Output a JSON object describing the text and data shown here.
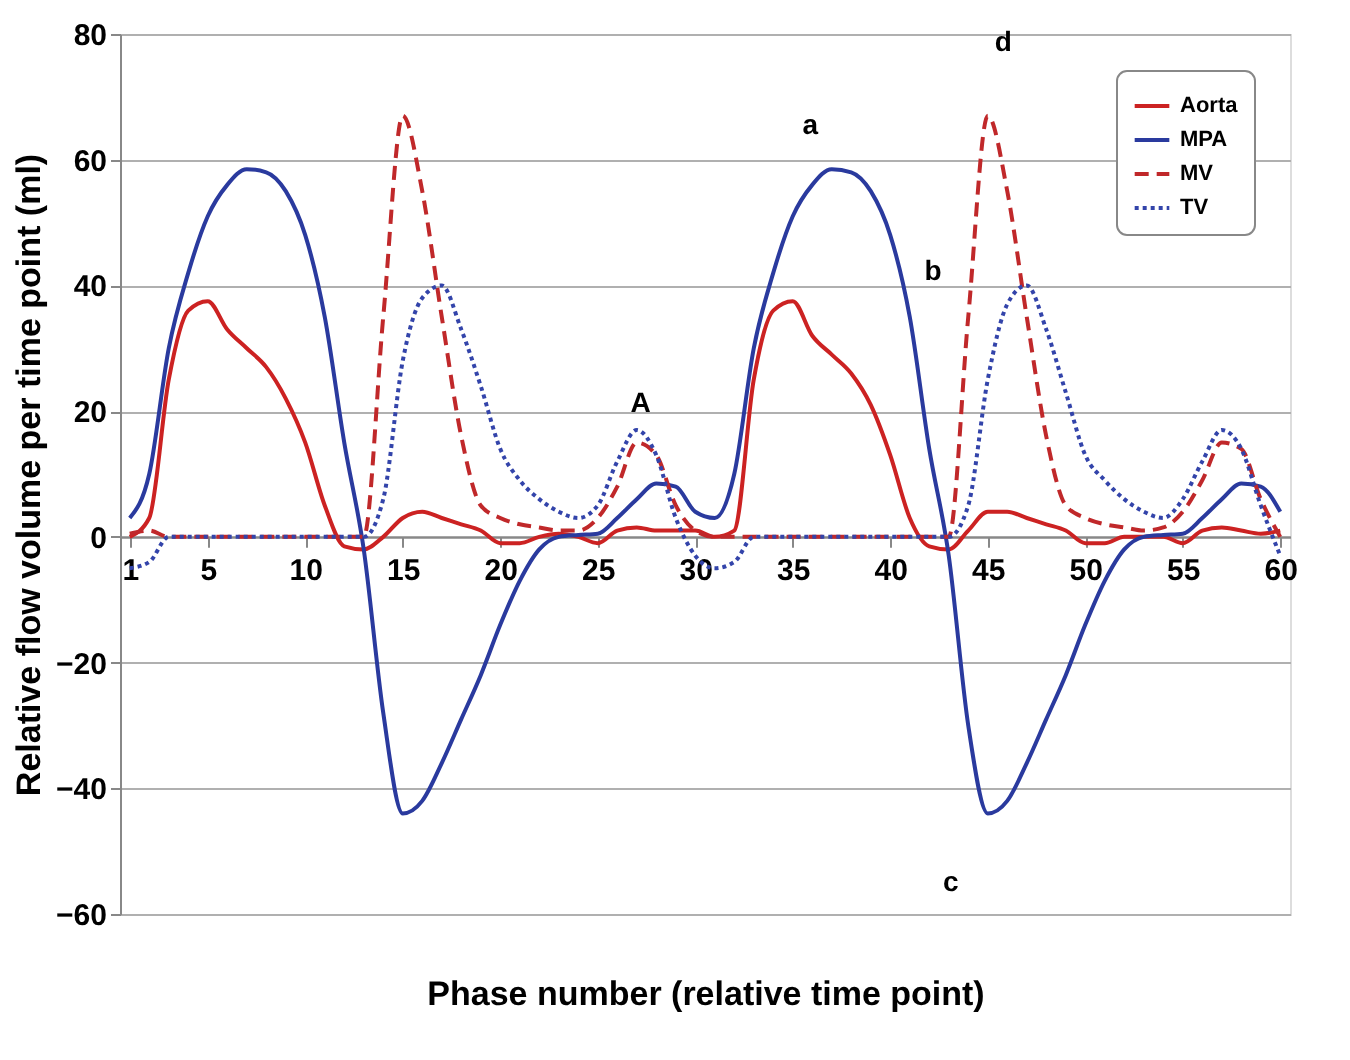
{
  "chart_data": {
    "type": "line",
    "xlabel": "Phase number (relative time point)",
    "ylabel": "Relative flow volume per time point (ml)",
    "x": [
      1,
      2,
      3,
      4,
      5,
      6,
      7,
      8,
      9,
      10,
      11,
      12,
      13,
      14,
      15,
      16,
      17,
      18,
      19,
      20,
      21,
      22,
      23,
      24,
      25,
      26,
      27,
      28,
      29,
      30,
      31,
      32,
      33,
      34,
      35,
      36,
      37,
      38,
      39,
      40,
      41,
      42,
      43,
      44,
      45,
      46,
      47,
      48,
      49,
      50,
      51,
      52,
      53,
      54,
      55,
      56,
      57,
      58,
      59,
      60
    ],
    "series": [
      {
        "name": "Aorta",
        "color": "#cc2222",
        "line_style": "solid",
        "values": [
          0,
          3,
          25,
          36,
          37.5,
          33,
          30,
          27,
          22,
          15,
          5,
          -1.5,
          -2,
          0,
          3,
          4,
          3,
          2,
          1,
          -1,
          -1,
          0,
          0.5,
          0,
          -1,
          1,
          1.5,
          1,
          1,
          1,
          0,
          1,
          25,
          36,
          37.5,
          32,
          29,
          26,
          21,
          13,
          3,
          -1.5,
          -2,
          1,
          4,
          4,
          3,
          2,
          1,
          -1,
          -1,
          0,
          0,
          0,
          -1,
          1,
          1.5,
          1,
          0.5,
          1
        ]
      },
      {
        "name": "MPA",
        "color": "#2a3a9e",
        "line_style": "solid",
        "values": [
          3,
          10,
          30,
          42,
          51,
          56,
          58.5,
          58,
          55,
          48,
          35,
          15,
          -2,
          -28,
          -44,
          -42,
          -36,
          -29,
          -22,
          -14,
          -7,
          -2,
          0,
          0.3,
          0.5,
          3,
          6,
          8.5,
          8,
          4,
          3,
          10,
          30,
          42,
          51,
          56,
          58.5,
          58,
          55,
          48,
          35,
          14,
          -3,
          -30,
          -44,
          -42,
          -36,
          -29,
          -22,
          -14,
          -7,
          -2,
          0,
          0.3,
          0.5,
          3,
          6,
          8.5,
          8,
          4
        ]
      },
      {
        "name": "MV",
        "color": "#c0282a",
        "line_style": "dashed",
        "values": [
          0.5,
          1,
          0,
          0,
          0,
          0,
          0,
          0,
          0,
          0,
          0,
          0,
          0,
          35,
          67,
          55,
          35,
          16,
          5,
          3,
          2,
          1.5,
          1,
          1,
          3,
          8,
          15,
          13,
          5,
          1,
          0,
          0,
          0,
          0,
          0,
          0,
          0,
          0,
          0,
          0,
          0,
          0,
          0,
          35,
          67,
          55,
          35,
          16,
          5,
          3,
          2,
          1.5,
          1,
          1.5,
          4,
          9,
          15,
          14,
          6,
          0
        ]
      },
      {
        "name": "TV",
        "color": "#3344aa",
        "line_style": "dotted",
        "values": [
          -5,
          -4,
          0,
          0,
          0,
          0,
          0,
          0,
          0,
          0,
          0,
          0,
          0,
          6,
          28,
          38,
          40,
          33,
          24,
          14,
          9,
          6,
          4,
          3,
          5,
          12,
          17,
          13,
          3,
          -3,
          -5,
          -4,
          0,
          0,
          0,
          0,
          0,
          0,
          0,
          0,
          0,
          0,
          0,
          5,
          25,
          37,
          40,
          33,
          23,
          13,
          9,
          6,
          4,
          3,
          6,
          12,
          17,
          14,
          5,
          -3
        ]
      }
    ],
    "xlim": [
      0.5,
      60.5
    ],
    "xticks": [
      1,
      5,
      10,
      15,
      20,
      25,
      30,
      35,
      40,
      45,
      50,
      55,
      60
    ],
    "ylim": [
      -60,
      80
    ],
    "yticks": [
      -60,
      -40,
      -20,
      0,
      20,
      40,
      60,
      80
    ],
    "grid": "y",
    "legend": "top right",
    "annotations": [
      "A",
      "a",
      "b",
      "c",
      "d"
    ]
  }
}
